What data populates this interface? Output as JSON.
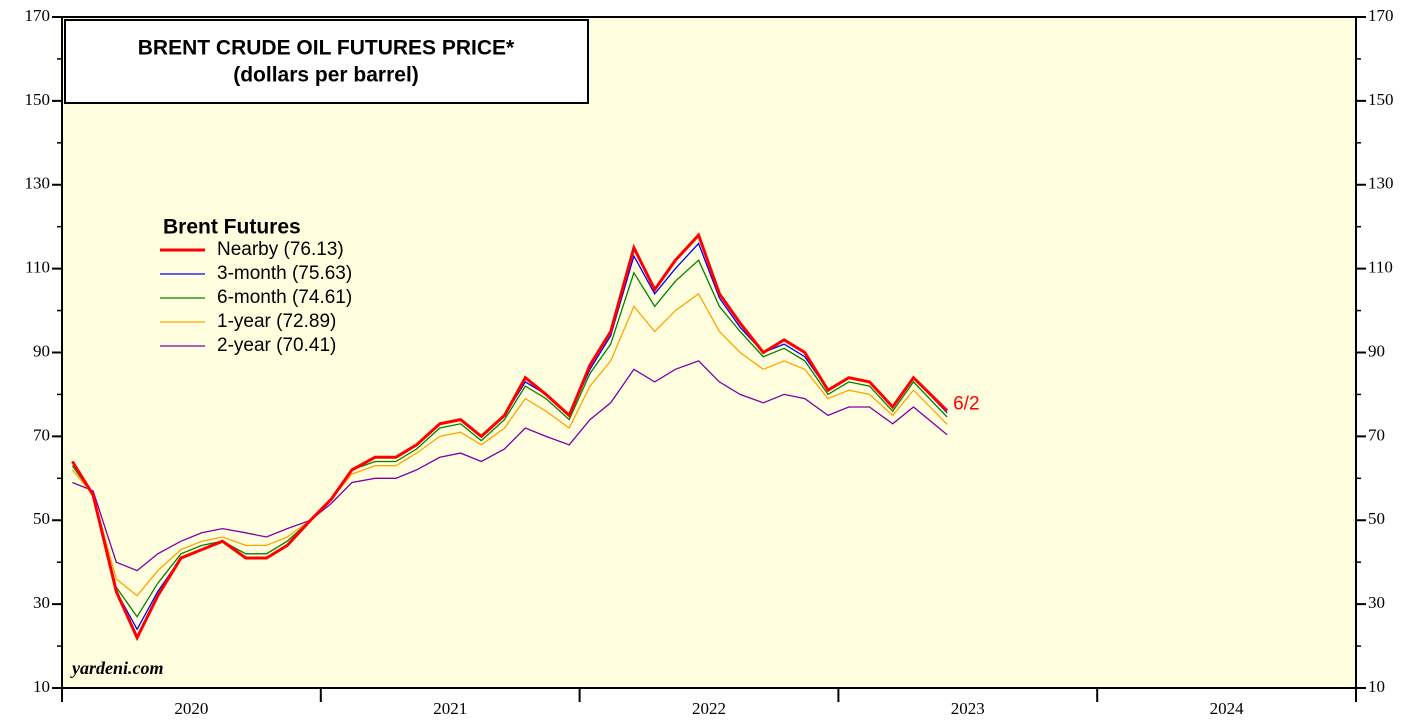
{
  "chart_data": {
    "type": "line",
    "title": "BRENT CRUDE OIL FUTURES PRICE*",
    "subtitle": "(dollars per barrel)",
    "legend_title": "Brent Futures",
    "annotation": "6/2",
    "source": "yardeni.com",
    "x": [
      2020.04,
      2020.12,
      2020.21,
      2020.29,
      2020.37,
      2020.46,
      2020.54,
      2020.62,
      2020.71,
      2020.79,
      2020.87,
      2020.96,
      2021.04,
      2021.12,
      2021.21,
      2021.29,
      2021.37,
      2021.46,
      2021.54,
      2021.62,
      2021.71,
      2021.79,
      2021.87,
      2021.96,
      2022.04,
      2022.12,
      2022.21,
      2022.29,
      2022.37,
      2022.46,
      2022.54,
      2022.62,
      2022.71,
      2022.79,
      2022.87,
      2022.96,
      2023.04,
      2023.12,
      2023.21,
      2023.29,
      2023.42
    ],
    "year_labels": [
      "2020",
      "2021",
      "2022",
      "2023",
      "2024"
    ],
    "xlim": [
      2020,
      2025
    ],
    "xticks": [
      2020,
      2021,
      2022,
      2023,
      2024,
      2025
    ],
    "ylim": [
      10,
      170
    ],
    "yticks": [
      10,
      30,
      50,
      70,
      90,
      110,
      130,
      150,
      170
    ],
    "yminor": [
      20,
      40,
      60,
      80,
      100,
      120,
      140,
      160
    ],
    "legend": "upper left",
    "series": [
      {
        "name": "Nearby (76.13)",
        "color": "#ff0000",
        "values": [
          64,
          56,
          33,
          22,
          32,
          41,
          43,
          45,
          41,
          41,
          44,
          50,
          55,
          62,
          65,
          65,
          68,
          73,
          74,
          70,
          75,
          84,
          80,
          75,
          87,
          95,
          115,
          105,
          112,
          118,
          104,
          97,
          90,
          93,
          90,
          81,
          84,
          83,
          77,
          84,
          76.13
        ]
      },
      {
        "name": "3-month (75.63)",
        "color": "#0000ff",
        "values": [
          64,
          56,
          33,
          24,
          33,
          41,
          43,
          45,
          41,
          41,
          44,
          50,
          55,
          62,
          65,
          65,
          68,
          73,
          74,
          70,
          75,
          83,
          80,
          75,
          86,
          94,
          113,
          104,
          110,
          116,
          103,
          96,
          90,
          92,
          89,
          81,
          84,
          83,
          77,
          84,
          75.63
        ]
      },
      {
        "name": "6-month (74.61)",
        "color": "#008000",
        "values": [
          63,
          56,
          34,
          27,
          35,
          42,
          44,
          45,
          42,
          42,
          45,
          50,
          55,
          62,
          64,
          64,
          67,
          72,
          73,
          69,
          74,
          82,
          79,
          74,
          85,
          92,
          109,
          101,
          107,
          112,
          101,
          95,
          89,
          91,
          88,
          80,
          83,
          82,
          76,
          83,
          74.61
        ]
      },
      {
        "name": "1-year (72.89)",
        "color": "#ffa500",
        "values": [
          62,
          56,
          36,
          32,
          38,
          43,
          45,
          46,
          44,
          44,
          46,
          50,
          55,
          61,
          63,
          63,
          66,
          70,
          71,
          68,
          72,
          79,
          76,
          72,
          82,
          88,
          101,
          95,
          100,
          104,
          95,
          90,
          86,
          88,
          86,
          79,
          81,
          80,
          75,
          81,
          72.89
        ]
      },
      {
        "name": "2-year (70.41)",
        "color": "#8000a0",
        "values": [
          59,
          57,
          40,
          38,
          42,
          45,
          47,
          48,
          47,
          46,
          48,
          50,
          54,
          59,
          60,
          60,
          62,
          65,
          66,
          64,
          67,
          72,
          70,
          68,
          74,
          78,
          86,
          83,
          86,
          88,
          83,
          80,
          78,
          80,
          79,
          75,
          77,
          77,
          73,
          77,
          70.41
        ]
      }
    ]
  }
}
